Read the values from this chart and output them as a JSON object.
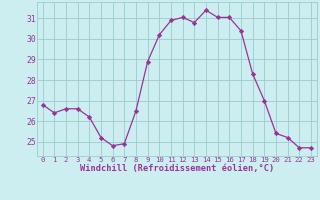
{
  "x": [
    0,
    1,
    2,
    3,
    4,
    5,
    6,
    7,
    8,
    9,
    10,
    11,
    12,
    13,
    14,
    15,
    16,
    17,
    18,
    19,
    20,
    21,
    22,
    23
  ],
  "y": [
    26.8,
    26.4,
    26.6,
    26.6,
    26.2,
    25.2,
    24.8,
    24.9,
    26.5,
    28.9,
    30.2,
    30.9,
    31.05,
    30.8,
    31.4,
    31.05,
    31.05,
    30.4,
    28.3,
    27.0,
    25.4,
    25.2,
    24.7,
    24.7
  ],
  "line_color": "#993399",
  "marker": "D",
  "marker_size": 2.2,
  "bg_color": "#cceef0",
  "grid_color": "#99cccc",
  "xlabel": "Windchill (Refroidissement éolien,°C)",
  "ylabel_ticks": [
    25,
    26,
    27,
    28,
    29,
    30,
    31
  ],
  "ylim": [
    24.3,
    31.8
  ],
  "xlim": [
    -0.5,
    23.5
  ],
  "tick_color": "#993399",
  "label_color": "#993399",
  "font_name": "monospace",
  "xtick_fontsize": 5.2,
  "ytick_fontsize": 5.8,
  "xlabel_fontsize": 6.2
}
